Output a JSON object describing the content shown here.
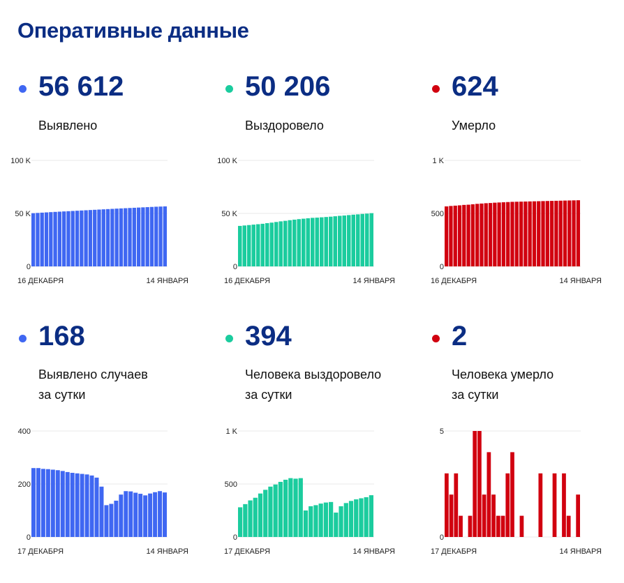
{
  "page": {
    "title": "Оперативные данные"
  },
  "colors": {
    "blue": "#3f67f2",
    "green": "#1bcc9e",
    "red": "#d1000f",
    "title": "#0b2d83"
  },
  "panels": [
    {
      "value": "56 612",
      "label": "Выявлено",
      "color_key": "blue"
    },
    {
      "value": "50 206",
      "label": "Выздоровело",
      "color_key": "green"
    },
    {
      "value": "624",
      "label": "Умерло",
      "color_key": "red"
    },
    {
      "value": "168",
      "label": "Выявлено случаев\nза сутки",
      "color_key": "blue"
    },
    {
      "value": "394",
      "label": "Человека выздоровело\nза сутки",
      "color_key": "green"
    },
    {
      "value": "2",
      "label": "Человека умерло\nза сутки",
      "color_key": "red"
    }
  ],
  "chart_data": [
    {
      "type": "bar",
      "title": "",
      "xlabel": "",
      "ylabel": "",
      "ylim": [
        0,
        100000
      ],
      "yticks": [
        {
          "value": 0,
          "label": "0"
        },
        {
          "value": 50000,
          "label": "50 K"
        },
        {
          "value": 100000,
          "label": "100 K"
        }
      ],
      "x_start_label": "16 ДЕКАБРЯ",
      "x_end_label": "14 ЯНВАРЯ",
      "series": [
        {
          "values": [
            50200,
            50450,
            50700,
            50950,
            51200,
            51420,
            51640,
            51860,
            52080,
            52300,
            52520,
            52740,
            52960,
            53180,
            53400,
            53620,
            53840,
            54060,
            54280,
            54500,
            54700,
            54900,
            55100,
            55300,
            55500,
            55700,
            55900,
            56100,
            56300,
            56450,
            56612
          ]
        }
      ]
    },
    {
      "type": "bar",
      "title": "",
      "xlabel": "",
      "ylabel": "",
      "ylim": [
        0,
        100000
      ],
      "yticks": [
        {
          "value": 0,
          "label": "0"
        },
        {
          "value": 50000,
          "label": "50 K"
        },
        {
          "value": 100000,
          "label": "100 K"
        }
      ],
      "x_start_label": "16 ДЕКАБРЯ",
      "x_end_label": "14 ЯНВАРЯ",
      "series": [
        {
          "values": [
            38200,
            38600,
            39000,
            39400,
            39800,
            40200,
            40800,
            41300,
            41900,
            42500,
            43000,
            43600,
            44100,
            44600,
            45000,
            45400,
            45800,
            46000,
            46300,
            46600,
            46900,
            47300,
            47700,
            48000,
            48400,
            48800,
            49100,
            49500,
            49800,
            50206
          ]
        }
      ]
    },
    {
      "type": "bar",
      "title": "",
      "xlabel": "",
      "ylabel": "",
      "ylim": [
        0,
        1000
      ],
      "yticks": [
        {
          "value": 0,
          "label": "0"
        },
        {
          "value": 500,
          "label": "500"
        },
        {
          "value": 1000,
          "label": "1 K"
        }
      ],
      "x_start_label": "16 ДЕКАБРЯ",
      "x_end_label": "14 ЯНВАРЯ",
      "series": [
        {
          "values": [
            566,
            570,
            573,
            576,
            580,
            582,
            586,
            590,
            593,
            596,
            598,
            601,
            603,
            605,
            607,
            609,
            610,
            611,
            612,
            613,
            614,
            615,
            616,
            617,
            618,
            619,
            620,
            621,
            622,
            623,
            624
          ]
        }
      ]
    },
    {
      "type": "bar",
      "title": "",
      "xlabel": "",
      "ylabel": "",
      "ylim": [
        0,
        400
      ],
      "yticks": [
        {
          "value": 0,
          "label": "0"
        },
        {
          "value": 200,
          "label": "200"
        },
        {
          "value": 400,
          "label": "400"
        }
      ],
      "x_start_label": "17 ДЕКАБРЯ",
      "x_end_label": "14 ЯНВАРЯ",
      "series": [
        {
          "values": [
            260,
            260,
            257,
            256,
            254,
            252,
            249,
            245,
            242,
            240,
            238,
            236,
            232,
            224,
            190,
            120,
            125,
            137,
            160,
            173,
            172,
            167,
            163,
            157,
            164,
            169,
            173,
            168
          ]
        }
      ]
    },
    {
      "type": "bar",
      "title": "",
      "xlabel": "",
      "ylabel": "",
      "ylim": [
        0,
        1000
      ],
      "yticks": [
        {
          "value": 0,
          "label": "0"
        },
        {
          "value": 500,
          "label": "500"
        },
        {
          "value": 1000,
          "label": "1 K"
        }
      ],
      "x_start_label": "17 ДЕКАБРЯ",
      "x_end_label": "14 ЯНВАРЯ",
      "series": [
        {
          "values": [
            280,
            310,
            345,
            370,
            410,
            445,
            475,
            495,
            520,
            540,
            555,
            550,
            555,
            250,
            290,
            300,
            315,
            325,
            330,
            230,
            290,
            320,
            340,
            355,
            365,
            375,
            394
          ]
        }
      ]
    },
    {
      "type": "bar",
      "title": "",
      "xlabel": "",
      "ylabel": "",
      "ylim": [
        0,
        5
      ],
      "yticks": [
        {
          "value": 0,
          "label": "0"
        },
        {
          "value": 5,
          "label": "5"
        }
      ],
      "x_start_label": "17 ДЕКАБРЯ",
      "x_end_label": "14 ЯНВАРЯ",
      "series": [
        {
          "values": [
            3,
            2,
            3,
            1,
            0,
            1,
            5,
            5,
            2,
            4,
            2,
            1,
            1,
            3,
            4,
            0,
            1,
            0,
            0,
            0,
            3,
            0,
            0,
            3,
            0,
            3,
            1,
            0,
            2
          ]
        }
      ]
    }
  ]
}
